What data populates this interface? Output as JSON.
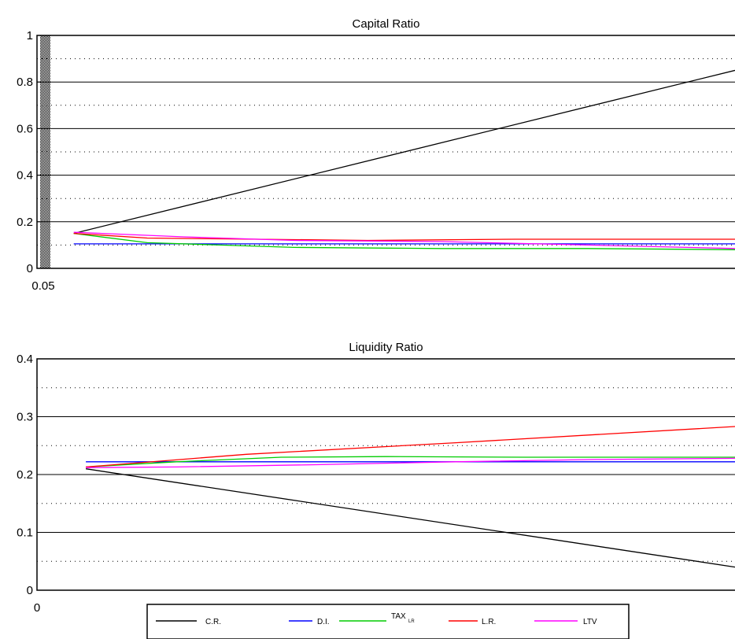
{
  "chart_data": [
    {
      "type": "line",
      "title": "Capital Ratio",
      "xlabel": "",
      "ylabel": "",
      "xlim": [
        0.05,
        1
      ],
      "ylim": [
        0,
        1
      ],
      "yticks": [
        "0",
        "0.2",
        "0.4",
        "0.6",
        "0.8",
        "1"
      ],
      "xticks": [
        "0.05"
      ],
      "grid": "solid major, dotted minor",
      "series": [
        {
          "name": "C.R.",
          "color": "#000000",
          "x": [
            0.1,
            1.0
          ],
          "y": [
            0.15,
            0.85
          ]
        },
        {
          "name": "D.I.",
          "color": "#0000ff",
          "x": [
            0.1,
            0.3,
            0.5,
            0.7,
            1.0
          ],
          "y": [
            0.105,
            0.105,
            0.105,
            0.105,
            0.105
          ]
        },
        {
          "name": "TAX_{LR}",
          "color": "#00cc00",
          "x": [
            0.1,
            0.2,
            0.3,
            0.4,
            0.6,
            0.8,
            1.0
          ],
          "y": [
            0.15,
            0.11,
            0.1,
            0.09,
            0.085,
            0.085,
            0.08
          ]
        },
        {
          "name": "L.R.",
          "color": "#ff0000",
          "x": [
            0.1,
            0.2,
            0.35,
            0.5,
            0.7,
            1.0
          ],
          "y": [
            0.15,
            0.13,
            0.125,
            0.12,
            0.125,
            0.125
          ]
        },
        {
          "name": "LTV",
          "color": "#ff00ff",
          "x": [
            0.1,
            0.25,
            0.4,
            0.6,
            0.8,
            1.0
          ],
          "y": [
            0.155,
            0.135,
            0.12,
            0.115,
            0.1,
            0.085
          ]
        }
      ]
    },
    {
      "type": "line",
      "title": "Liquidity Ratio",
      "xlabel": "",
      "ylabel": "",
      "xlim": [
        0,
        1
      ],
      "ylim": [
        0,
        0.4
      ],
      "yticks": [
        "0",
        "0.1",
        "0.2",
        "0.3",
        "0.4"
      ],
      "xticks": [
        "0"
      ],
      "grid": "solid major, dotted minor",
      "series": [
        {
          "name": "C.R.",
          "color": "#000000",
          "x": [
            0.07,
            1.0
          ],
          "y": [
            0.21,
            0.04
          ]
        },
        {
          "name": "D.I.",
          "color": "#0000ff",
          "x": [
            0.07,
            0.3,
            0.5,
            0.7,
            1.0
          ],
          "y": [
            0.222,
            0.222,
            0.222,
            0.222,
            0.222
          ]
        },
        {
          "name": "TAX_{LR}",
          "color": "#00cc00",
          "x": [
            0.07,
            0.2,
            0.35,
            0.5,
            0.7,
            1.0
          ],
          "y": [
            0.213,
            0.222,
            0.23,
            0.231,
            0.23,
            0.23
          ]
        },
        {
          "name": "L.R.",
          "color": "#ff0000",
          "x": [
            0.07,
            0.3,
            0.6,
            1.0
          ],
          "y": [
            0.213,
            0.235,
            0.255,
            0.283
          ]
        },
        {
          "name": "LTV",
          "color": "#ff00ff",
          "x": [
            0.07,
            0.2,
            0.4,
            0.6,
            0.8,
            1.0
          ],
          "y": [
            0.212,
            0.213,
            0.217,
            0.222,
            0.226,
            0.228
          ]
        }
      ]
    }
  ],
  "legend": {
    "placement": "bottom",
    "items": [
      {
        "label": "C.R.",
        "color": "#000000"
      },
      {
        "label": "D.I.",
        "color": "#0000ff"
      },
      {
        "label": "TAX",
        "sub": "LR",
        "color": "#00cc00"
      },
      {
        "label": "L.R.",
        "color": "#ff0000"
      },
      {
        "label": "LTV",
        "color": "#ff00ff"
      }
    ]
  }
}
